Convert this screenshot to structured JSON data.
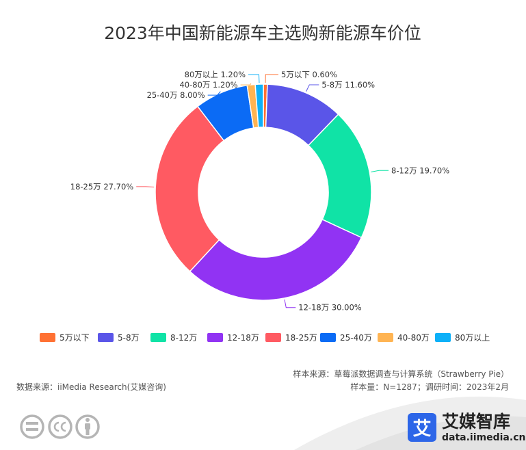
{
  "chart_data": {
    "type": "pie",
    "variant": "donut",
    "title": "2023年中国新能源车主选购新能源车价位",
    "categories": [
      "5万以下",
      "5-8万",
      "8-12万",
      "12-18万",
      "18-25万",
      "25-40万",
      "40-80万",
      "80万以上"
    ],
    "values": [
      0.6,
      11.6,
      19.7,
      30.0,
      27.7,
      8.0,
      1.2,
      1.2
    ],
    "value_labels": [
      "0.60%",
      "11.60%",
      "19.70%",
      "30.00%",
      "27.70%",
      "8.00%",
      "1.20%",
      "1.20%"
    ],
    "unit": "%",
    "colors": [
      "#FF7133",
      "#5A55E8",
      "#10E3A6",
      "#9133F3",
      "#FF5A62",
      "#0B6BF5",
      "#FFB452",
      "#0DB0F8"
    ],
    "legend_position": "bottom"
  },
  "footer": {
    "data_source": "数据来源：iiMedia Research(艾媒咨询)",
    "sample_source": "样本来源：草莓派数据调查与计算系统（Strawberry Pie）",
    "sample_info": "样本量：N=1287；调研时间：2023年2月"
  },
  "brand": {
    "icon_char": "艾",
    "name": "艾媒智库",
    "url": "data.iimedia.cn"
  },
  "icons": [
    "equals-icon",
    "creative-commons-icon",
    "person-icon"
  ],
  "colors": {
    "brand_blue": "#2D66E8",
    "license_gray": "#B5B5B5"
  }
}
